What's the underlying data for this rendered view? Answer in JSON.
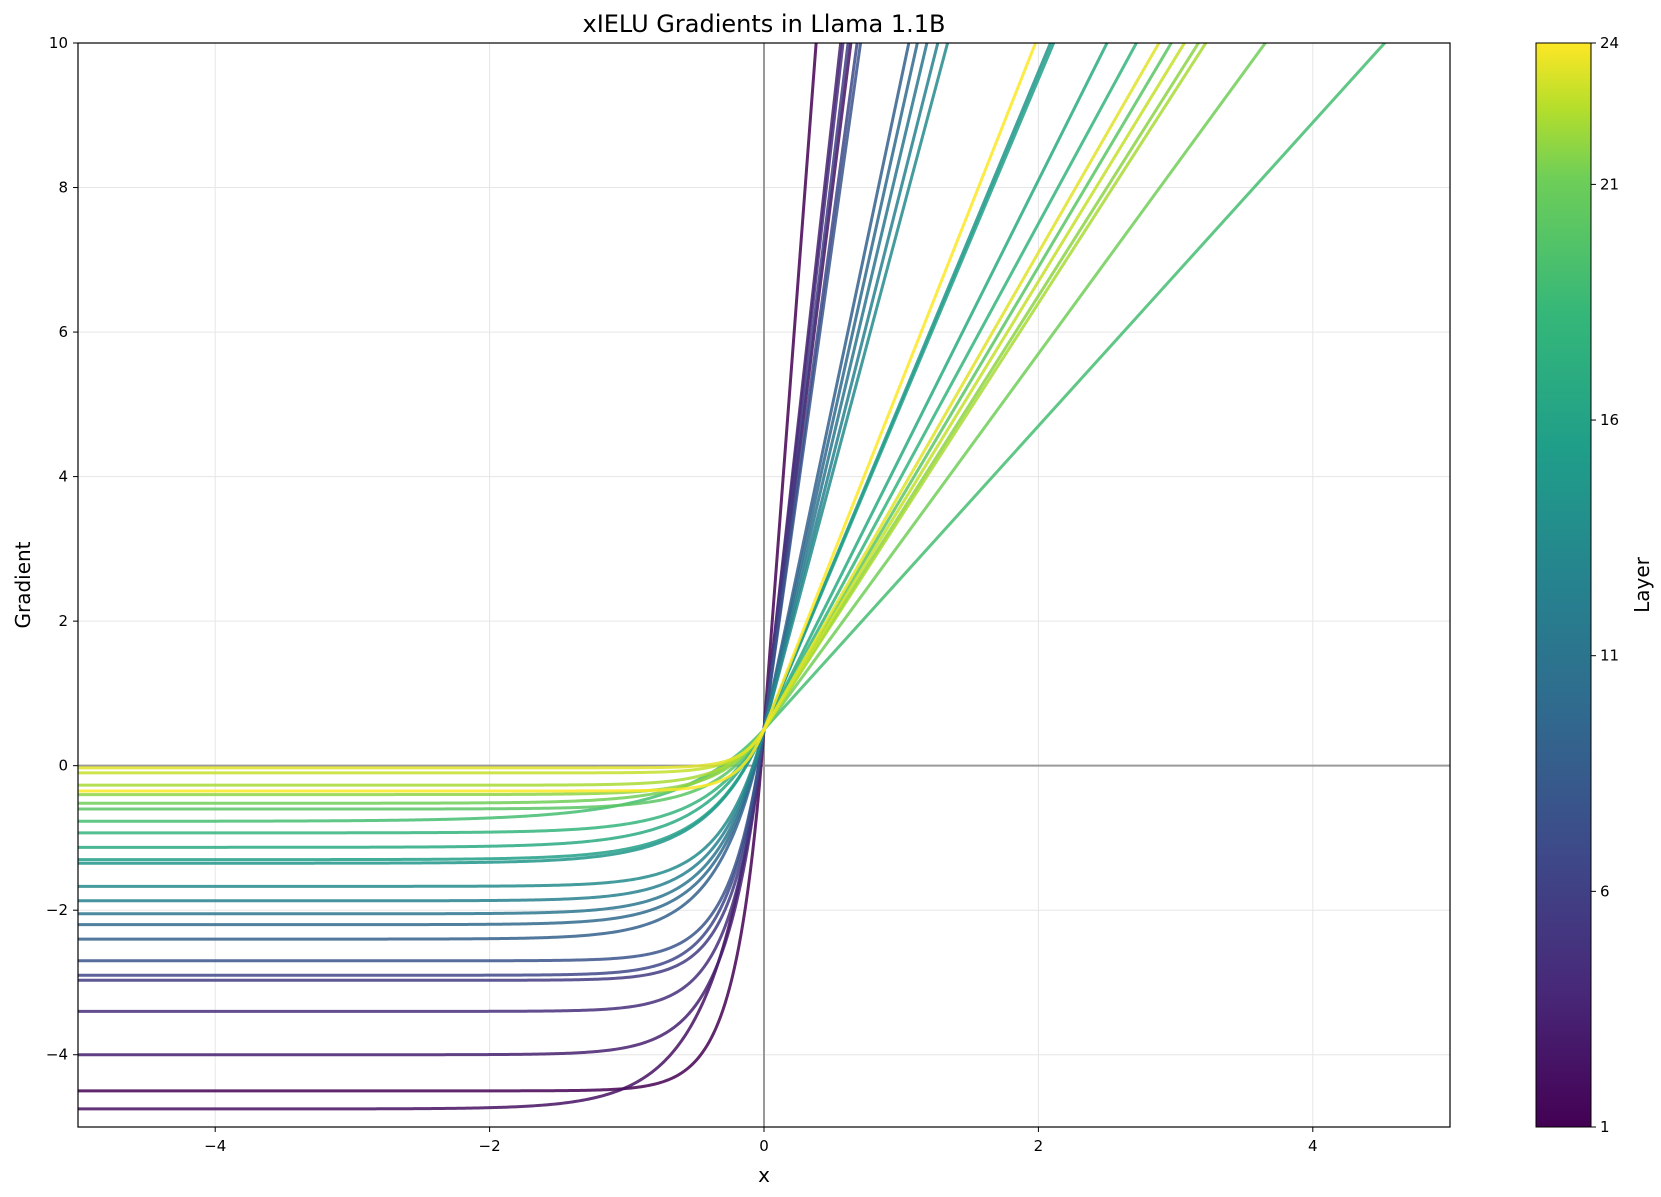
{
  "chart_data": {
    "type": "line",
    "title": "xIELU Gradients in Llama 1.1B",
    "xlabel": "x",
    "ylabel": "Gradient",
    "xlim": [
      -5,
      5
    ],
    "ylim": [
      -5,
      10
    ],
    "x_ticks": [
      -4,
      -2,
      0,
      2,
      4
    ],
    "x_tick_labels": [
      "−4",
      "−2",
      "0",
      "2",
      "4"
    ],
    "y_ticks": [
      -4,
      -2,
      0,
      2,
      4,
      6,
      8,
      10
    ],
    "y_tick_labels": [
      "−4",
      "−2",
      "0",
      "2",
      "4",
      "6",
      "8",
      "10"
    ],
    "grid": true,
    "reference_lines": [
      "x = 0",
      "y = 0"
    ],
    "colorbar": {
      "label": "Layer",
      "colormap": "viridis",
      "range": [
        1,
        24
      ],
      "ticks": [
        1,
        6,
        11,
        16,
        21,
        24
      ],
      "tick_labels": [
        "1",
        "6",
        "11",
        "16",
        "21",
        "24"
      ]
    },
    "intercept_at_zero": 0.5,
    "series": [
      {
        "layer": 1,
        "asymptote_neg": -4.5,
        "slope_pos": 25.0
      },
      {
        "layer": 2,
        "asymptote_neg": -4.75,
        "slope_pos": 15.0
      },
      {
        "layer": 3,
        "asymptote_neg": -4.0,
        "slope_pos": 17.0
      },
      {
        "layer": 4,
        "asymptote_neg": -3.4,
        "slope_pos": 16.5
      },
      {
        "layer": 5,
        "asymptote_neg": -2.97,
        "slope_pos": 15.5
      },
      {
        "layer": 6,
        "asymptote_neg": -2.9,
        "slope_pos": 14.0
      },
      {
        "layer": 7,
        "asymptote_neg": -2.7,
        "slope_pos": 13.5
      },
      {
        "layer": 8,
        "asymptote_neg": -2.4,
        "slope_pos": 9.0
      },
      {
        "layer": 9,
        "asymptote_neg": -2.2,
        "slope_pos": 8.5
      },
      {
        "layer": 10,
        "asymptote_neg": -2.05,
        "slope_pos": 8.0
      },
      {
        "layer": 11,
        "asymptote_neg": -1.87,
        "slope_pos": 7.5
      },
      {
        "layer": 12,
        "asymptote_neg": -1.67,
        "slope_pos": 7.1
      },
      {
        "layer": 13,
        "asymptote_neg": -1.35,
        "slope_pos": 4.55
      },
      {
        "layer": 14,
        "asymptote_neg": -1.3,
        "slope_pos": 4.5
      },
      {
        "layer": 15,
        "asymptote_neg": -1.13,
        "slope_pos": 3.8
      },
      {
        "layer": 16,
        "asymptote_neg": -0.93,
        "slope_pos": 3.5
      },
      {
        "layer": 17,
        "asymptote_neg": -0.77,
        "slope_pos": 2.1
      },
      {
        "layer": 18,
        "asymptote_neg": -0.6,
        "slope_pos": 3.2
      },
      {
        "layer": 19,
        "asymptote_neg": -0.52,
        "slope_pos": 2.6
      },
      {
        "layer": 20,
        "asymptote_neg": -0.4,
        "slope_pos": 3.0
      },
      {
        "layer": 21,
        "asymptote_neg": -0.27,
        "slope_pos": 2.95
      },
      {
        "layer": 22,
        "asymptote_neg": -0.1,
        "slope_pos": 3.1
      },
      {
        "layer": 23,
        "asymptote_neg": -0.03,
        "slope_pos": 3.3
      },
      {
        "layer": 24,
        "asymptote_neg": -0.35,
        "slope_pos": 4.8
      }
    ]
  }
}
